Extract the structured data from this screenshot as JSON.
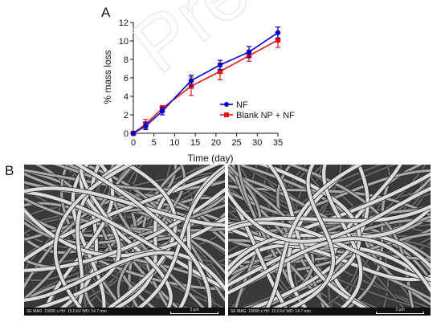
{
  "panel_a_label": "A",
  "panel_b_label": "B",
  "watermark_text": "Pre-proof",
  "chart_data": {
    "type": "line",
    "title": "",
    "xlabel": "Time (day)",
    "ylabel": "% mass loss",
    "xlim": [
      0,
      35
    ],
    "ylim": [
      0,
      12
    ],
    "xticks": [
      0,
      5,
      10,
      15,
      20,
      25,
      30,
      35
    ],
    "yticks": [
      0,
      2,
      4,
      6,
      8,
      10,
      12
    ],
    "grid": false,
    "legend_position": "center-right",
    "series": [
      {
        "name": "NF",
        "color": "#0000cc",
        "marker": "circle",
        "x": [
          0,
          3,
          7,
          14,
          21,
          28,
          35
        ],
        "y": [
          0,
          0.8,
          2.4,
          5.7,
          7.4,
          8.8,
          10.9
        ],
        "err": [
          0.1,
          0.4,
          0.4,
          0.6,
          0.5,
          0.6,
          0.6
        ]
      },
      {
        "name": "Blank NP + NF",
        "color": "#ee1111",
        "marker": "square",
        "x": [
          0,
          3,
          7,
          14,
          21,
          28,
          35
        ],
        "y": [
          0,
          1.0,
          2.7,
          5.1,
          6.7,
          8.4,
          10.1
        ],
        "err": [
          0.1,
          0.5,
          0.3,
          1.0,
          0.9,
          0.6,
          0.8
        ]
      }
    ]
  },
  "sem_images": [
    {
      "info": "SE  MAG: 10000 x  HV: 15.0 kV  WD: 14.7 mm",
      "scale_label": "3 µm"
    },
    {
      "info": "SE  MAG: 10000 x  HV: 15.0 kV  WD: 14.7 mm",
      "scale_label": "3 µm"
    }
  ]
}
